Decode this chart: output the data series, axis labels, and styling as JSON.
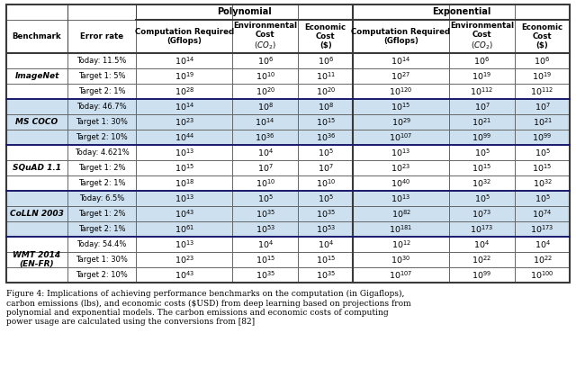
{
  "caption": "Figure 4: Implications of achieving performance benchmarks on the computation (in Gigaflops),\ncarbon emissions (lbs), and economic costs ($USD) from deep learning based on projections from\npolynomial and exponential models. The carbon emissions and economic costs of computing\npower usage are calculated using the conversions from [82]",
  "benchmarks": [
    {
      "name": "ImageNet",
      "italic": true,
      "shaded": false,
      "rows": [
        [
          "Today: 11.5%",
          "14",
          "6",
          "6",
          "14",
          "6",
          "6"
        ],
        [
          "Target 1: 5%",
          "19",
          "10",
          "11",
          "27",
          "19",
          "19"
        ],
        [
          "Target 2: 1%",
          "28",
          "20",
          "20",
          "120",
          "112",
          "112"
        ]
      ]
    },
    {
      "name": "MS COCO",
      "italic": true,
      "shaded": true,
      "rows": [
        [
          "Today: 46.7%",
          "14",
          "8",
          "8",
          "15",
          "7",
          "7"
        ],
        [
          "Target 1: 30%",
          "23",
          "14",
          "15",
          "29",
          "21",
          "21"
        ],
        [
          "Target 2: 10%",
          "44",
          "36",
          "36",
          "107",
          "99",
          "99"
        ]
      ]
    },
    {
      "name": "SQuAD 1.1",
      "italic": true,
      "shaded": false,
      "rows": [
        [
          "Today: 4.621%",
          "13",
          "4",
          "5",
          "13",
          "5",
          "5"
        ],
        [
          "Target 1: 2%",
          "15",
          "7",
          "7",
          "23",
          "15",
          "15"
        ],
        [
          "Target 2: 1%",
          "18",
          "10",
          "10",
          "40",
          "32",
          "32"
        ]
      ]
    },
    {
      "name": "CoLLN 2003",
      "italic": true,
      "shaded": true,
      "rows": [
        [
          "Today: 6.5%",
          "13",
          "5",
          "5",
          "13",
          "5",
          "5"
        ],
        [
          "Target 1: 2%",
          "43",
          "35",
          "35",
          "82",
          "73",
          "74"
        ],
        [
          "Target 2: 1%",
          "61",
          "53",
          "53",
          "181",
          "173",
          "173"
        ]
      ]
    },
    {
      "name": "WMT 2014\n(EN-FR)",
      "italic": true,
      "shaded": false,
      "rows": [
        [
          "Today: 54.4%",
          "13",
          "4",
          "4",
          "12",
          "4",
          "4"
        ],
        [
          "Target 1: 30%",
          "23",
          "15",
          "15",
          "30",
          "22",
          "22"
        ],
        [
          "Target 2: 10%",
          "43",
          "35",
          "35",
          "107",
          "99",
          "100"
        ]
      ]
    }
  ],
  "shaded_color": "#cde0f0",
  "border_color": "#3a3a3a",
  "thick_border_color": "#1a1a6e"
}
